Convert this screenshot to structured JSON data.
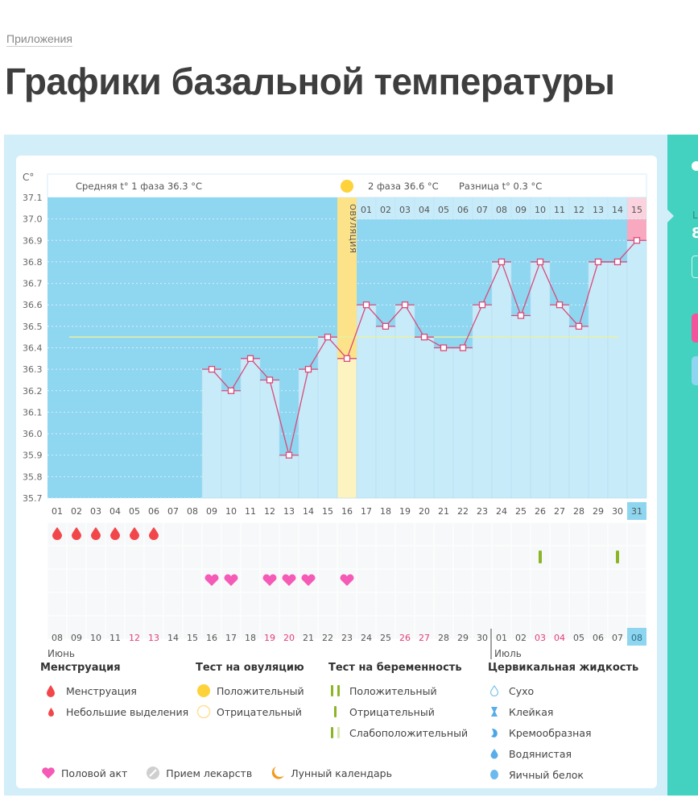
{
  "breadcrumb": "Приложения",
  "page_title": "Графики базальной температуры",
  "colors": {
    "pre_bg": "#8fd6f1",
    "bar": "#c8ebfa",
    "line": "#d94a78",
    "ovulation": "#fce38a",
    "teal_panel": "#42d2bf",
    "pink_cell": "#f9a9bf",
    "menstruation": "#f2474a",
    "heart": "#f45ab6",
    "test_green": "#8bb526",
    "coverline": "#e8f0a0"
  },
  "side_panel": {
    "label": "L",
    "value": "8"
  },
  "header": {
    "unit": "C°",
    "phase1": "Средняя t° 1 фаза 36.3 °C",
    "phase2": "2 фаза 36.6 °C",
    "difference": "Разница t° 0.3 °C",
    "ovulation_label": "ОВУЛЯЦИЯ"
  },
  "chart_data": {
    "type": "line",
    "title": "Графики базальной температуры",
    "ylabel": "C°",
    "ylim": [
      35.7,
      37.1
    ],
    "yticks": [
      "37.1",
      "37.0",
      "36.9",
      "36.8",
      "36.7",
      "36.6",
      "36.5",
      "36.4",
      "36.3",
      "36.2",
      "36.1",
      "36.0",
      "35.9",
      "35.8",
      "35.7"
    ],
    "x": [
      "01",
      "02",
      "03",
      "04",
      "05",
      "06",
      "07",
      "08",
      "09",
      "10",
      "11",
      "12",
      "13",
      "14",
      "15",
      "16",
      "17",
      "18",
      "19",
      "20",
      "21",
      "22",
      "23",
      "24",
      "25",
      "26",
      "27",
      "28",
      "29",
      "30",
      "31"
    ],
    "series": [
      {
        "name": "Базальная температура",
        "values": [
          null,
          null,
          null,
          null,
          null,
          null,
          null,
          null,
          36.3,
          36.2,
          36.35,
          36.25,
          35.9,
          36.3,
          36.45,
          36.35,
          36.6,
          36.5,
          36.6,
          36.45,
          36.4,
          36.4,
          36.6,
          36.8,
          36.55,
          36.8,
          36.6,
          36.5,
          36.8,
          36.8,
          36.9
        ]
      }
    ],
    "coverline": 36.45,
    "ovulation_day": "16",
    "phase2_days": [
      "01",
      "02",
      "03",
      "04",
      "05",
      "06",
      "07",
      "08",
      "09",
      "10",
      "11",
      "12",
      "13",
      "14",
      "15"
    ],
    "current_day": "31",
    "phase1_avg": 36.3,
    "phase2_avg": 36.6,
    "difference": 0.3
  },
  "events": {
    "menstruation_days": [
      1,
      2,
      3,
      4,
      5,
      6
    ],
    "pregnancy_test_negative_days": [
      26,
      30
    ],
    "intercourse_days": [
      9,
      10,
      12,
      13,
      14,
      16
    ]
  },
  "dates": {
    "labels": [
      "08",
      "09",
      "10",
      "11",
      "12",
      "13",
      "14",
      "15",
      "16",
      "17",
      "18",
      "19",
      "20",
      "21",
      "22",
      "23",
      "24",
      "25",
      "26",
      "27",
      "28",
      "29",
      "30",
      "01",
      "02",
      "03",
      "04",
      "05",
      "06",
      "07",
      "08"
    ],
    "weekend_idx": [
      4,
      5,
      11,
      12,
      18,
      19,
      25,
      26
    ],
    "month1": "Июнь",
    "month2": "Июль",
    "current": "08"
  },
  "legend": {
    "menstruation": {
      "title": "Менструация",
      "items": [
        "Менструация",
        "Небольшие выделения"
      ]
    },
    "ovulation_test": {
      "title": "Тест на овуляцию",
      "items": [
        "Положительный",
        "Отрицательный"
      ]
    },
    "pregnancy_test": {
      "title": "Тест на беременность",
      "items": [
        "Положительный",
        "Отрицательный",
        "Слабоположительный"
      ]
    },
    "cervical": {
      "title": "Цервикальная жидкость",
      "items": [
        "Сухо",
        "Клейкая",
        "Кремообразная",
        "Водянистая",
        "Яичный белок"
      ]
    },
    "other": [
      "Половой акт",
      "Прием лекарств",
      "Лунный календарь"
    ]
  }
}
